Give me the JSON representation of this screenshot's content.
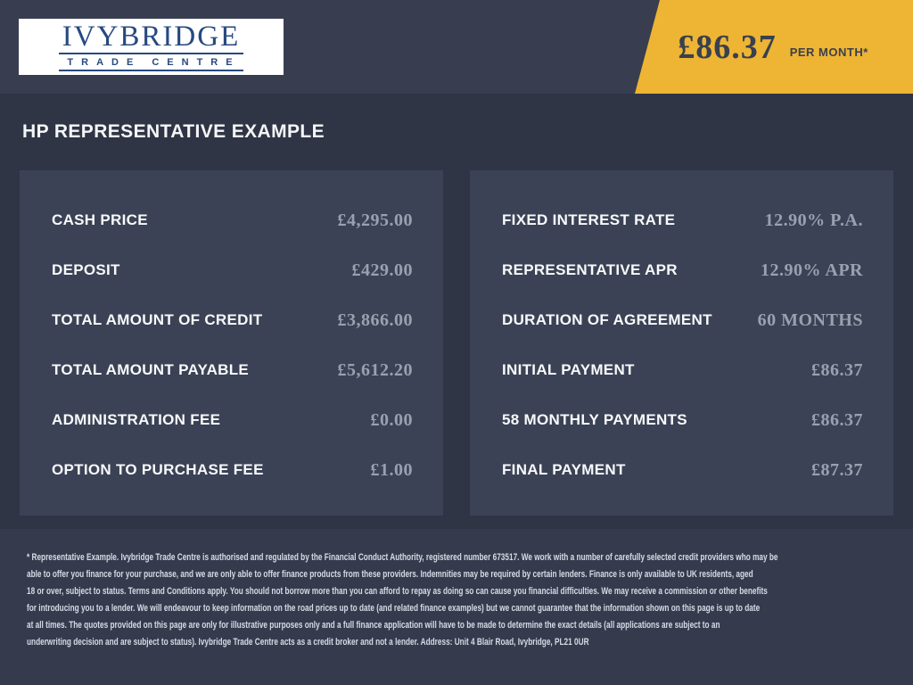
{
  "brand": {
    "name": "IVYBRIDGE",
    "subtitle": "TRADE CENTRE"
  },
  "ribbon": {
    "price": "£86.37",
    "suffix": "PER MONTH*"
  },
  "heading": "HP REPRESENTATIVE EXAMPLE",
  "panels": {
    "left": {
      "rows": [
        {
          "label": "CASH PRICE",
          "value": "£4,295.00"
        },
        {
          "label": "DEPOSIT",
          "value": "£429.00"
        },
        {
          "label": "TOTAL AMOUNT OF CREDIT",
          "value": "£3,866.00"
        },
        {
          "label": "TOTAL AMOUNT PAYABLE",
          "value": "£5,612.20"
        },
        {
          "label": "ADMINISTRATION FEE",
          "value": "£0.00"
        },
        {
          "label": "OPTION TO PURCHASE FEE",
          "value": "£1.00"
        }
      ]
    },
    "right": {
      "rows": [
        {
          "label": "FIXED INTEREST RATE",
          "value": "12.90% P.A."
        },
        {
          "label": "REPRESENTATIVE APR",
          "value": "12.90% APR"
        },
        {
          "label": "DURATION OF AGREEMENT",
          "value": "60 MONTHS"
        },
        {
          "label": "INITIAL PAYMENT",
          "value": "£86.37"
        },
        {
          "label": "58 MONTHLY PAYMENTS",
          "value": "£86.37"
        },
        {
          "label": "FINAL PAYMENT",
          "value": "£87.37"
        }
      ]
    }
  },
  "disclaimer": {
    "lines": [
      "* Representative Example. Ivybridge Trade Centre is authorised and regulated by the Financial Conduct Authority, registered number 673517. We work with a number of carefully selected credit providers who may be",
      "able to offer you finance for your purchase, and we are only able to offer finance products from these providers. Indemnities may be required by certain lenders. Finance is only available to UK residents, aged",
      "18 or over, subject to status. Terms and Conditions apply. You should not borrow more than you can afford to repay as doing so can cause you financial difficulties. We may receive a commission or other benefits",
      "for introducing you to a lender. We will endeavour to keep information on the road prices up to date (and related finance examples) but we cannot guarantee that the information shown on this page is up to date",
      "at all times. The quotes provided on this page are only for illustrative purposes only and a full finance application will have to be made to determine the exact details (all applications are subject to an",
      "underwriting decision and are subject to status). Ivybridge Trade Centre acts as a credit broker and not a lender. Address: Unit 4 Blair Road, Ivybridge, PL21 0UR"
    ]
  },
  "colors": {
    "top_band_background": "#383e50",
    "main_background": "#2f3544",
    "panel_background": "#3b4255",
    "footer_background": "#353b4d",
    "accent_yellow": "#eeb433",
    "logo_navy": "#274980",
    "value_grey": "#99a1b0",
    "label_white": "#f8f9fa"
  }
}
